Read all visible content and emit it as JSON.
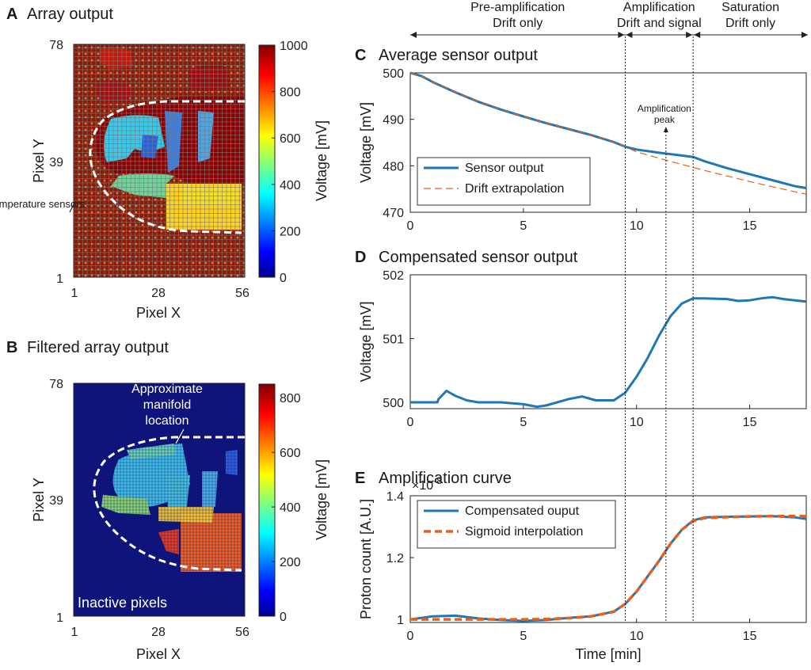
{
  "figure": {
    "phases": [
      {
        "title": "Pre-amplification",
        "subtitle": "Drift only"
      },
      {
        "title": "Amplification",
        "subtitle": "Drift and signal"
      },
      {
        "title": "Saturation",
        "subtitle": "Drift only"
      }
    ],
    "phase_boundaries_min": [
      9.5,
      12.5
    ],
    "amplification_peak_min": 11.3,
    "amplification_peak_label": "Amplification peak"
  },
  "chart_data": [
    {
      "id": "A",
      "type": "heatmap",
      "panel_letter": "A",
      "title": "Array output",
      "xlabel": "Pixel X",
      "ylabel": "Pixel Y",
      "x_ticks": [
        "1",
        "28",
        "56"
      ],
      "y_ticks": [
        "78",
        "39",
        "1"
      ],
      "colorbar_label": "Voltage [mV]",
      "colorbar_ticks": [
        "1000",
        "800",
        "600",
        "400",
        "200",
        "0"
      ],
      "colorbar_range": [
        0,
        1000
      ],
      "annotation": "Temperature sensors",
      "grid_size": [
        56,
        78
      ]
    },
    {
      "id": "B",
      "type": "heatmap",
      "panel_letter": "B",
      "title": "Filtered array output",
      "xlabel": "Pixel X",
      "ylabel": "Pixel Y",
      "x_ticks": [
        "1",
        "28",
        "56"
      ],
      "y_ticks": [
        "78",
        "39",
        "1"
      ],
      "colorbar_label": "Voltage [mV]",
      "colorbar_ticks": [
        "800",
        "600",
        "400",
        "200",
        "0"
      ],
      "colorbar_range": [
        0,
        850
      ],
      "annotation": "Approximate manifold location",
      "inner_label": "Inactive pixels",
      "grid_size": [
        56,
        78
      ]
    },
    {
      "id": "C",
      "type": "line",
      "panel_letter": "C",
      "title": "Average sensor output",
      "ylabel": "Voltage [mV]",
      "xlim": [
        0,
        17.5
      ],
      "ylim": [
        470,
        500
      ],
      "x_ticks": [
        0,
        5,
        10,
        15
      ],
      "y_ticks": [
        470,
        480,
        490,
        500
      ],
      "series": [
        {
          "name": "Sensor output",
          "color": "#1f77b4",
          "dash": "solid",
          "x": [
            0,
            0.5,
            1,
            2,
            3,
            4,
            5,
            6,
            7,
            8,
            9,
            9.5,
            10,
            11,
            12,
            12.5,
            13,
            14,
            15,
            16,
            17,
            17.5
          ],
          "y": [
            500,
            499.3,
            498,
            495.8,
            493.8,
            492.1,
            490.6,
            489.2,
            487.9,
            486.6,
            485.1,
            484.1,
            483.5,
            482.8,
            482.2,
            481.9,
            481,
            479.5,
            478.2,
            476.9,
            475.6,
            475.2
          ]
        },
        {
          "name": "Drift extrapolation",
          "color": "#e8601c",
          "dash": "dashed",
          "x": [
            0,
            0.5,
            1,
            2,
            3,
            4,
            5,
            6,
            7,
            8,
            9,
            9.5,
            10,
            11,
            12,
            13,
            14,
            15,
            16,
            17,
            17.5
          ],
          "y": [
            500,
            499.3,
            498,
            495.8,
            493.8,
            492.1,
            490.6,
            489.2,
            487.9,
            486.6,
            485.1,
            484.1,
            483,
            481.6,
            480.3,
            479,
            477.8,
            476.6,
            475.5,
            474.4,
            473.9
          ]
        }
      ]
    },
    {
      "id": "D",
      "type": "line",
      "panel_letter": "D",
      "title": "Compensated sensor output",
      "ylabel": "Voltage [mV]",
      "xlim": [
        0,
        17.5
      ],
      "ylim": [
        499.9,
        502
      ],
      "x_ticks": [
        0,
        5,
        10,
        15
      ],
      "y_ticks": [
        500,
        501,
        502
      ],
      "series": [
        {
          "name": "Compensated sensor output",
          "color": "#1f77b4",
          "dash": "solid",
          "x": [
            0,
            1.2,
            1.25,
            1.6,
            2.0,
            2.5,
            3,
            4,
            5,
            5.6,
            6,
            7,
            7.6,
            8.2,
            9,
            9.5,
            10,
            10.5,
            11,
            11.5,
            12,
            12.5,
            13,
            14,
            14.5,
            15,
            15.5,
            16,
            16.5,
            17,
            17.5
          ],
          "y": [
            500,
            500,
            500.05,
            500.18,
            500.1,
            500.03,
            500.0,
            500.0,
            499.97,
            499.93,
            499.95,
            500.05,
            500.09,
            500.03,
            500.03,
            500.15,
            500.4,
            500.7,
            501.05,
            501.35,
            501.55,
            501.63,
            501.63,
            501.62,
            501.59,
            501.6,
            501.63,
            501.65,
            501.62,
            501.6,
            501.58
          ]
        }
      ]
    },
    {
      "id": "E",
      "type": "line",
      "panel_letter": "E",
      "title": "Amplification curve",
      "ylabel": "Proton count [A.U.]",
      "xlabel": "Time [min]",
      "exponent_label": "×10",
      "exponent_power": "-8",
      "xlim": [
        0,
        17.5
      ],
      "ylim": [
        0.99,
        1.4
      ],
      "x_ticks": [
        0,
        5,
        10,
        15
      ],
      "y_ticks": [
        "1",
        "1.2",
        "1.4"
      ],
      "y_tick_values": [
        1,
        1.2,
        1.4
      ],
      "series": [
        {
          "name": "Compensated ouput",
          "color": "#1f77b4",
          "dash": "solid",
          "x": [
            0,
            1,
            2,
            3,
            4,
            5,
            6,
            7,
            8,
            9,
            9.5,
            10,
            10.5,
            11,
            11.5,
            12,
            12.5,
            13,
            14,
            15,
            16,
            17,
            17.5
          ],
          "y": [
            1.0,
            1.01,
            1.012,
            1.003,
            0.998,
            0.995,
            0.998,
            1.005,
            1.01,
            1.025,
            1.05,
            1.09,
            1.14,
            1.19,
            1.245,
            1.29,
            1.32,
            1.33,
            1.332,
            1.333,
            1.334,
            1.33,
            1.325
          ]
        },
        {
          "name": "Sigmoid interpolation",
          "color": "#e8601c",
          "dash": "dashed",
          "x": [
            0,
            1,
            2,
            3,
            4,
            5,
            6,
            7,
            8,
            9,
            9.5,
            10,
            10.5,
            11,
            11.5,
            12,
            12.5,
            13,
            14,
            15,
            16,
            17,
            17.5
          ],
          "y": [
            1.0,
            1.0,
            1.0,
            1.0,
            1.0,
            1.0,
            1.001,
            1.004,
            1.01,
            1.025,
            1.05,
            1.09,
            1.14,
            1.19,
            1.245,
            1.29,
            1.318,
            1.328,
            1.331,
            1.333,
            1.334,
            1.334,
            1.334
          ]
        }
      ]
    }
  ]
}
